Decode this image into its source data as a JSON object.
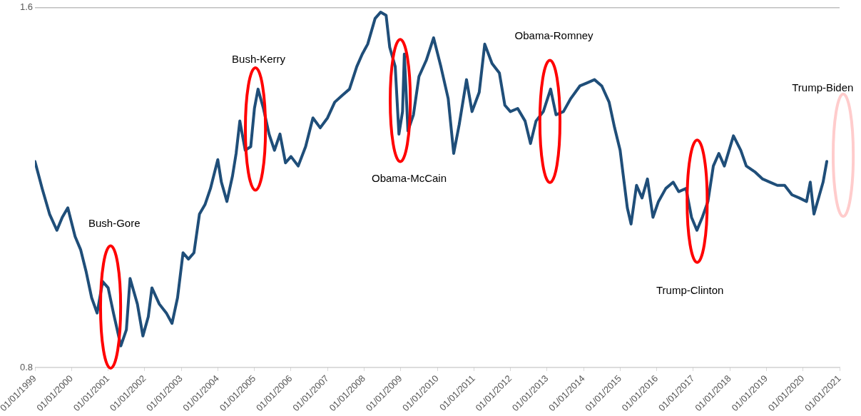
{
  "chart_data": {
    "type": "line",
    "x": [
      "1999-01-01",
      "1999-03-14",
      "1999-05-27",
      "1999-08-08",
      "1999-10-01",
      "1999-11-25",
      "2000-02-06",
      "2000-04-01",
      "2000-05-27",
      "2000-07-20",
      "2000-09-13",
      "2000-11-07",
      "2001-01-01",
      "2001-02-24",
      "2001-05-08",
      "2001-07-02",
      "2001-08-08",
      "2001-10-20",
      "2001-12-14",
      "2002-02-06",
      "2002-03-14",
      "2002-05-27",
      "2002-08-08",
      "2002-10-01",
      "2002-11-25",
      "2003-01-19",
      "2003-03-14",
      "2003-05-08",
      "2003-07-02",
      "2003-08-26",
      "2003-10-20",
      "2004-01-01",
      "2004-02-06",
      "2004-04-01",
      "2004-05-27",
      "2004-07-02",
      "2004-08-08",
      "2004-10-01",
      "2004-11-25",
      "2005-01-01",
      "2005-02-06",
      "2005-04-01",
      "2005-05-27",
      "2005-07-20",
      "2005-09-13",
      "2005-11-07",
      "2006-01-01",
      "2006-03-14",
      "2006-05-27",
      "2006-08-08",
      "2006-10-20",
      "2007-01-01",
      "2007-03-14",
      "2007-05-27",
      "2007-08-08",
      "2007-10-20",
      "2007-12-14",
      "2008-02-06",
      "2008-04-20",
      "2008-06-14",
      "2008-08-08",
      "2008-09-13",
      "2008-11-07",
      "2008-12-14",
      "2009-01-19",
      "2009-02-06",
      "2009-03-14",
      "2009-05-08",
      "2009-07-02",
      "2009-09-13",
      "2009-11-25",
      "2010-02-06",
      "2010-04-20",
      "2010-06-14",
      "2010-08-08",
      "2010-10-20",
      "2010-12-14",
      "2011-02-24",
      "2011-04-20",
      "2011-07-02",
      "2011-09-13",
      "2011-11-07",
      "2012-01-01",
      "2012-03-14",
      "2012-05-27",
      "2012-07-20",
      "2012-09-13",
      "2012-11-25",
      "2013-02-06",
      "2013-04-01",
      "2013-06-14",
      "2013-08-26",
      "2013-11-25",
      "2014-02-06",
      "2014-04-20",
      "2014-07-02",
      "2014-09-13",
      "2014-11-07",
      "2015-01-01",
      "2015-02-06",
      "2015-03-14",
      "2015-04-20",
      "2015-06-14",
      "2015-08-08",
      "2015-10-01",
      "2015-11-25",
      "2016-01-19",
      "2016-04-01",
      "2016-06-14",
      "2016-08-08",
      "2016-10-20",
      "2016-12-14",
      "2017-02-06",
      "2017-04-01",
      "2017-05-27",
      "2017-07-20",
      "2017-09-13",
      "2017-11-07",
      "2018-02-06",
      "2018-04-20",
      "2018-06-14",
      "2018-09-13",
      "2018-11-25",
      "2019-02-06",
      "2019-04-20",
      "2019-07-02",
      "2019-09-13",
      "2019-11-25",
      "2020-02-06",
      "2020-03-14",
      "2020-04-20",
      "2020-06-14",
      "2020-07-20",
      "2020-08-26"
    ],
    "series": [
      {
        "color": "#1f4e79",
        "values": [
          1.258,
          1.198,
          1.141,
          1.105,
          1.134,
          1.155,
          1.091,
          1.062,
          1.012,
          0.955,
          0.921,
          0.991,
          0.977,
          0.92,
          0.848,
          0.884,
          0.998,
          0.941,
          0.87,
          0.913,
          0.977,
          0.941,
          0.92,
          0.898,
          0.955,
          1.055,
          1.041,
          1.055,
          1.141,
          1.162,
          1.198,
          1.262,
          1.212,
          1.169,
          1.226,
          1.276,
          1.348,
          1.283,
          1.291,
          1.376,
          1.419,
          1.376,
          1.319,
          1.283,
          1.319,
          1.255,
          1.269,
          1.248,
          1.291,
          1.355,
          1.333,
          1.355,
          1.39,
          1.405,
          1.419,
          1.469,
          1.497,
          1.519,
          1.576,
          1.59,
          1.583,
          1.512,
          1.469,
          1.319,
          1.369,
          1.497,
          1.326,
          1.362,
          1.447,
          1.483,
          1.533,
          1.469,
          1.398,
          1.276,
          1.34,
          1.44,
          1.369,
          1.412,
          1.519,
          1.476,
          1.455,
          1.383,
          1.369,
          1.376,
          1.348,
          1.298,
          1.348,
          1.369,
          1.419,
          1.362,
          1.369,
          1.398,
          1.426,
          1.433,
          1.44,
          1.426,
          1.39,
          1.333,
          1.283,
          1.219,
          1.155,
          1.119,
          1.205,
          1.177,
          1.219,
          1.134,
          1.169,
          1.198,
          1.212,
          1.191,
          1.198,
          1.134,
          1.105,
          1.134,
          1.169,
          1.248,
          1.276,
          1.248,
          1.315,
          1.283,
          1.248,
          1.234,
          1.219,
          1.212,
          1.205,
          1.205,
          1.184,
          1.177,
          1.169,
          1.212,
          1.141,
          1.184,
          1.212,
          1.258
        ]
      }
    ],
    "xlim": [
      "1999-01-01",
      "2021-01-01"
    ],
    "xticks": [
      {
        "value": "1999-01-01",
        "label": "01/01/1999"
      },
      {
        "value": "2000-01-01",
        "label": "01/01/2000"
      },
      {
        "value": "2001-01-01",
        "label": "01/01/2001"
      },
      {
        "value": "2002-01-01",
        "label": "01/01/2002"
      },
      {
        "value": "2003-01-01",
        "label": "01/01/2003"
      },
      {
        "value": "2004-01-01",
        "label": "01/01/2004"
      },
      {
        "value": "2005-01-01",
        "label": "01/01/2005"
      },
      {
        "value": "2006-01-01",
        "label": "01/01/2006"
      },
      {
        "value": "2007-01-01",
        "label": "01/01/2007"
      },
      {
        "value": "2008-01-01",
        "label": "01/01/2008"
      },
      {
        "value": "2009-01-01",
        "label": "01/01/2009"
      },
      {
        "value": "2010-01-01",
        "label": "01/01/2010"
      },
      {
        "value": "2011-01-01",
        "label": "01/01/2011"
      },
      {
        "value": "2012-01-01",
        "label": "01/01/2012"
      },
      {
        "value": "2013-01-01",
        "label": "01/01/2013"
      },
      {
        "value": "2014-01-01",
        "label": "01/01/2014"
      },
      {
        "value": "2015-01-01",
        "label": "01/01/2015"
      },
      {
        "value": "2016-01-01",
        "label": "01/01/2016"
      },
      {
        "value": "2017-01-01",
        "label": "01/01/2017"
      },
      {
        "value": "2018-01-01",
        "label": "01/01/2018"
      },
      {
        "value": "2019-01-01",
        "label": "01/01/2019"
      },
      {
        "value": "2020-01-01",
        "label": "01/01/2020"
      },
      {
        "value": "2021-01-01",
        "label": "01/01/2021"
      }
    ],
    "ylim": [
      0.8,
      1.6
    ],
    "yticks": [
      0.8,
      1.6
    ],
    "grid": "y",
    "legend": false,
    "marker": "none",
    "line_style": "solid",
    "annotations": [
      "Bush-Gore",
      "Bush-Kerry",
      "Obama-McCain",
      "Obama-Romney",
      "Trump-Clinton",
      "Trump-Biden"
    ]
  }
}
